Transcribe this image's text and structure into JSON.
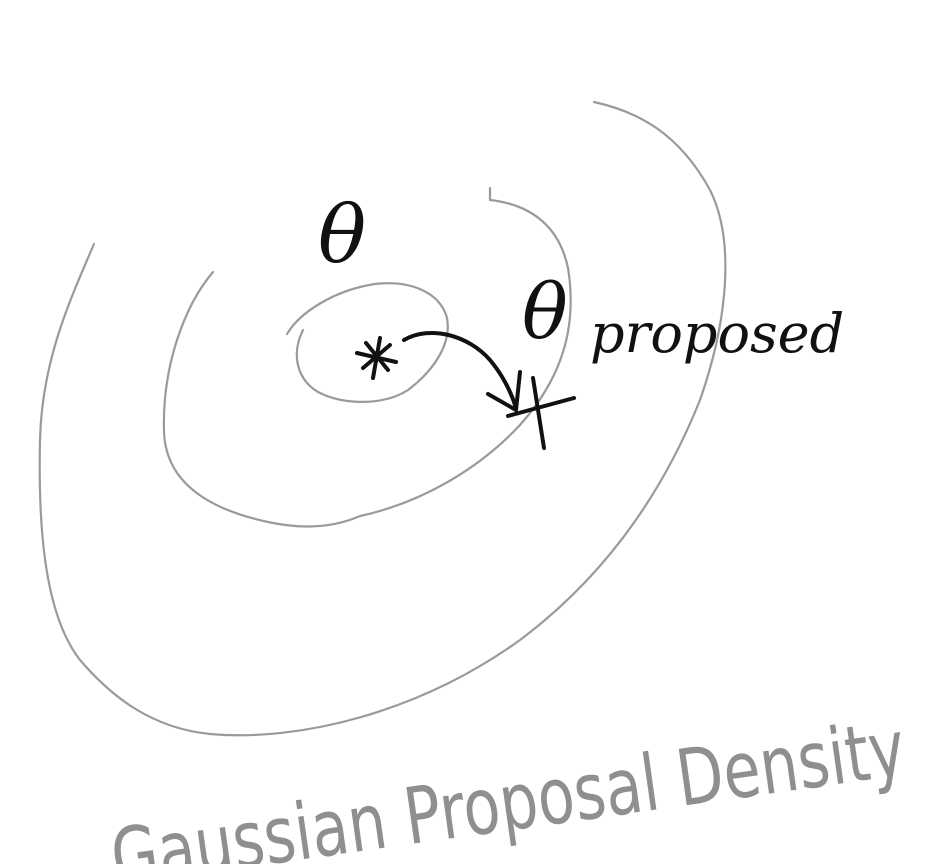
{
  "diagram": {
    "current_label": "θ",
    "proposed_label": "θ",
    "proposed_subscript": "proposed",
    "caption": "Gaussian Proposal Density"
  },
  "colors": {
    "ink": "#111111",
    "contour": "#9a9a9a",
    "caption": "#8f8f8f",
    "background": "#ffffff"
  },
  "icons": {
    "current_point": "asterisk-icon",
    "proposed_point": "cross-icon",
    "move_arrow": "curved-arrow-icon"
  }
}
